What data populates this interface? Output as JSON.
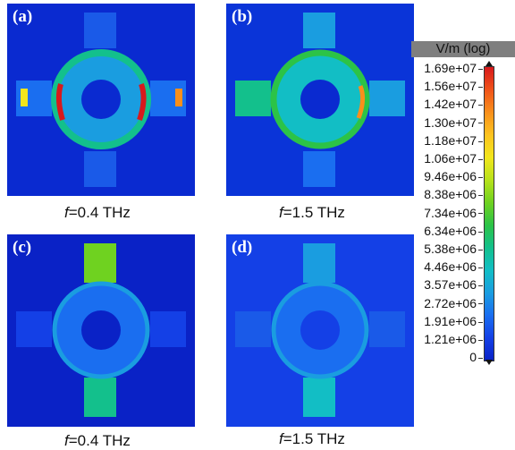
{
  "panels": [
    {
      "label": "(a)",
      "caption_var": "f",
      "caption_rest": "=0.4 THz",
      "field": "ring-strong"
    },
    {
      "label": "(b)",
      "caption_var": "f",
      "caption_rest": "=1.5 THz",
      "field": "ring-medium"
    },
    {
      "label": "(c)",
      "caption_var": "f",
      "caption_rest": "=0.4 THz",
      "field": "arms-strong"
    },
    {
      "label": "(d)",
      "caption_var": "f",
      "caption_rest": "=1.5 THz",
      "field": "arms-medium"
    }
  ],
  "colorbar": {
    "title": "V/m (log)",
    "ticks": [
      "1.69e+07",
      "1.56e+07",
      "1.42e+07",
      "1.30e+07",
      "1.18e+07",
      "1.06e+07",
      "9.46e+06",
      "8.38e+06",
      "7.34e+06",
      "6.34e+06",
      "5.38e+06",
      "4.46e+06",
      "3.57e+06",
      "2.72e+06",
      "1.91e+06",
      "1.21e+06",
      "0"
    ],
    "colors": [
      "#d7191c",
      "#f0531a",
      "#f98f1b",
      "#fdc31f",
      "#f2e61c",
      "#b8e21b",
      "#6fd220",
      "#2cc347",
      "#13c08c",
      "#12bec5",
      "#1a9de0",
      "#1a6ef0",
      "#1440e6",
      "#0a22c6"
    ]
  }
}
